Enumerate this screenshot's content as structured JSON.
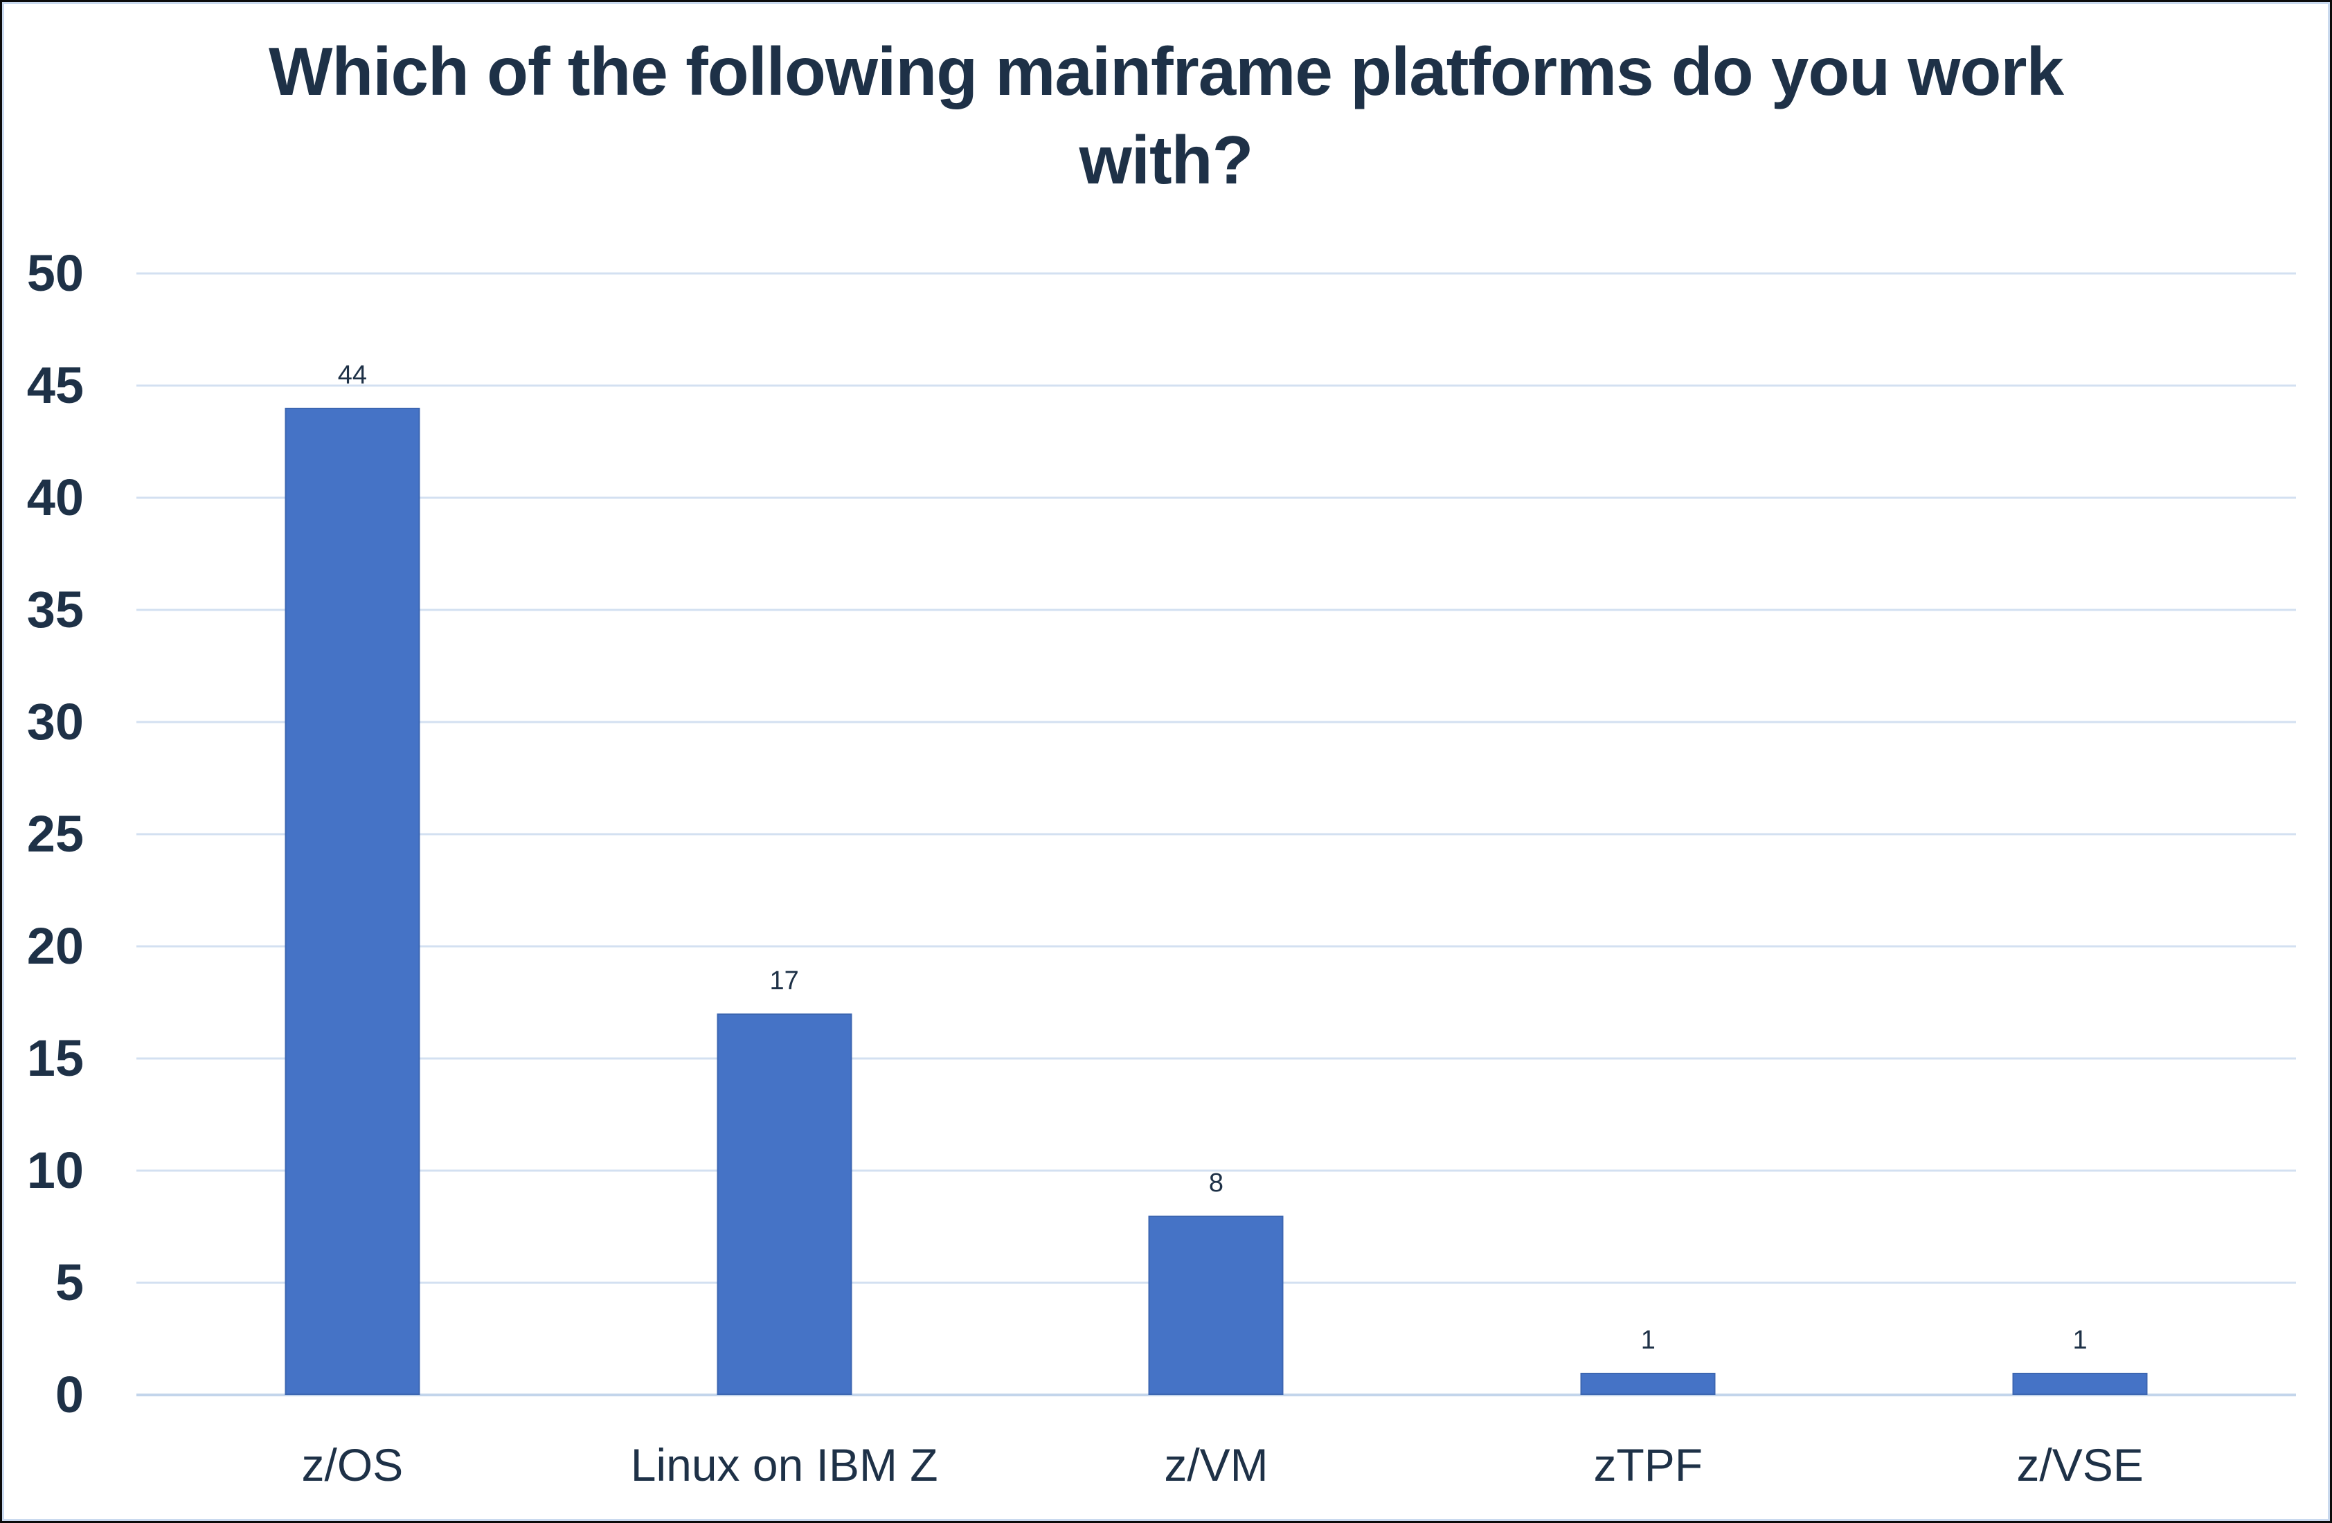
{
  "chart_data": {
    "type": "bar",
    "title": "Which of the following mainframe platforms do you work with?",
    "title_lines": [
      "Which of the following mainframe platforms do you work",
      "with?"
    ],
    "categories": [
      "z/OS",
      "Linux on IBM Z",
      "z/VM",
      "zTPF",
      "z/VSE"
    ],
    "values": [
      44,
      17,
      8,
      1,
      1
    ],
    "xlabel": "",
    "ylabel": "",
    "ylim": [
      0,
      50
    ],
    "yticks": [
      0,
      5,
      10,
      15,
      20,
      25,
      30,
      35,
      40,
      45,
      50
    ],
    "grid": "horizontal",
    "legend": "none",
    "data_labels": true
  },
  "colors": {
    "bar_fill": "#4573c6",
    "bar_border": "#3c66b1",
    "gridline": "#d3e0f1",
    "baseline": "#c3d5eb",
    "text": "#1e3147",
    "frame_outer": "#0b0b0b",
    "frame_inner": "#c9d9ee",
    "background": "#ffffff"
  }
}
